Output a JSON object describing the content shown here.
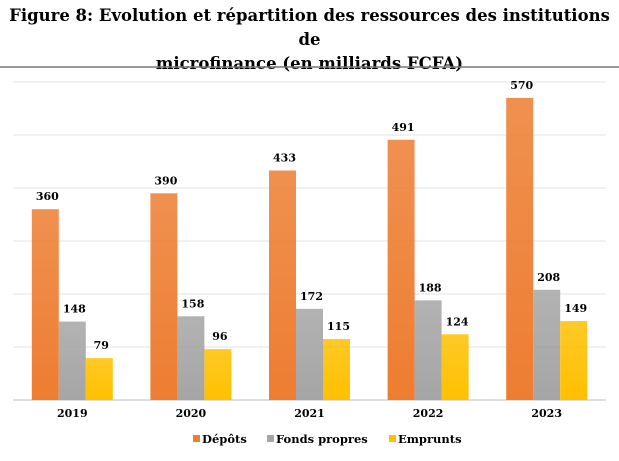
{
  "chart_data": {
    "type": "bar",
    "title_line1": "Figure 8: Evolution et répartition des ressources des institutions de",
    "title_line2": "microfinance (en milliards FCFA)",
    "categories": [
      "2019",
      "2020",
      "2021",
      "2022",
      "2023"
    ],
    "series": [
      {
        "name": "Dépôts",
        "color": "#ED7D31",
        "values": [
          360,
          390,
          433,
          491,
          570
        ]
      },
      {
        "name": "Fonds propres",
        "color": "#A5A5A5",
        "values": [
          148,
          158,
          172,
          188,
          208
        ]
      },
      {
        "name": "Emprunts",
        "color": "#FFC000",
        "values": [
          79,
          96,
          115,
          124,
          149
        ]
      }
    ],
    "ylim": [
      0,
      600
    ],
    "grid": true,
    "gridline_step": 100,
    "y_tick_labels_shown": false,
    "legend_position": "bottom"
  }
}
